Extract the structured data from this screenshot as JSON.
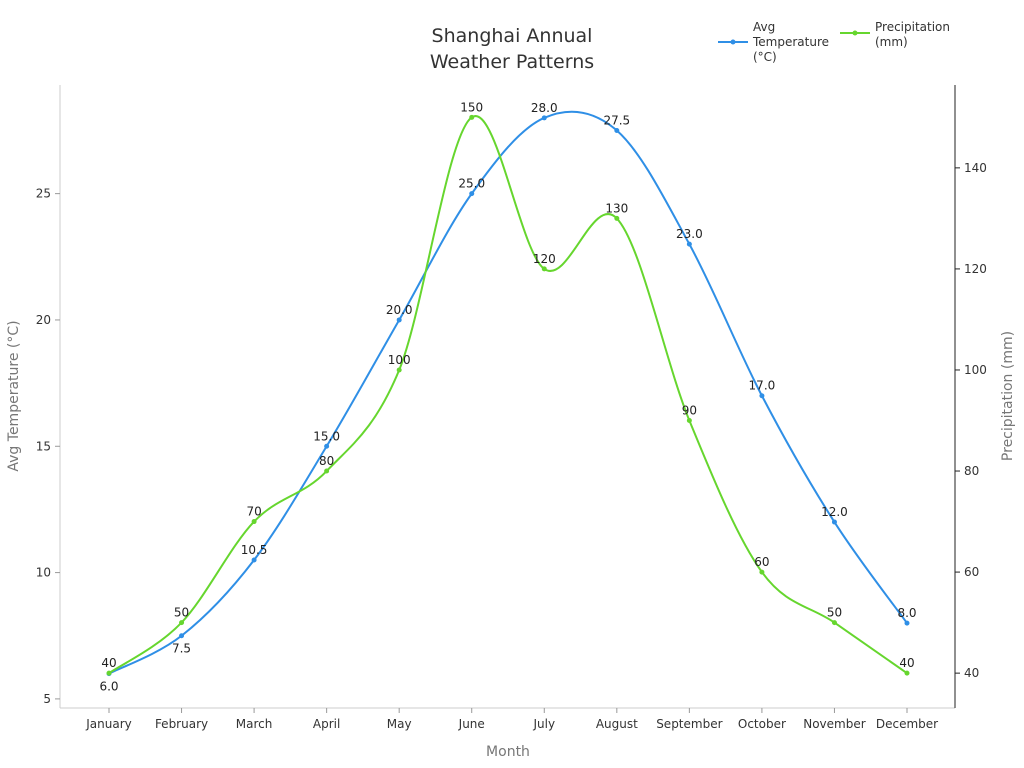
{
  "chart_data": {
    "type": "line",
    "title": [
      "Shanghai Annual",
      "Weather Patterns"
    ],
    "xlabel": "Month",
    "ylabel_left": "Avg Temperature (°C)",
    "ylabel_right": "Precipitation (mm)",
    "categories": [
      "January",
      "February",
      "March",
      "April",
      "May",
      "June",
      "July",
      "August",
      "September",
      "October",
      "November",
      "December"
    ],
    "ylim_left": [
      4.64,
      29.3
    ],
    "yticks_left": [
      5,
      10,
      15,
      20,
      25
    ],
    "ylim_right": [
      33.1,
      156.4
    ],
    "yticks_right": [
      40,
      60,
      80,
      100,
      120,
      140
    ],
    "grid": false,
    "legend_placement": "top-right",
    "series": [
      {
        "name": [
          "Avg",
          "Temperature",
          "(°C)"
        ],
        "axis": "left",
        "color": "#2f8fe6",
        "decimals": 1,
        "values": [
          6.0,
          7.5,
          10.5,
          15.0,
          20.0,
          25.0,
          28.0,
          27.5,
          23.0,
          17.0,
          12.0,
          8.0
        ]
      },
      {
        "name": [
          "Precipitation",
          "(mm)"
        ],
        "axis": "right",
        "color": "#66d62e",
        "decimals": 0,
        "values": [
          40,
          50,
          70,
          80,
          100,
          150,
          120,
          130,
          90,
          60,
          50,
          40
        ]
      }
    ]
  }
}
